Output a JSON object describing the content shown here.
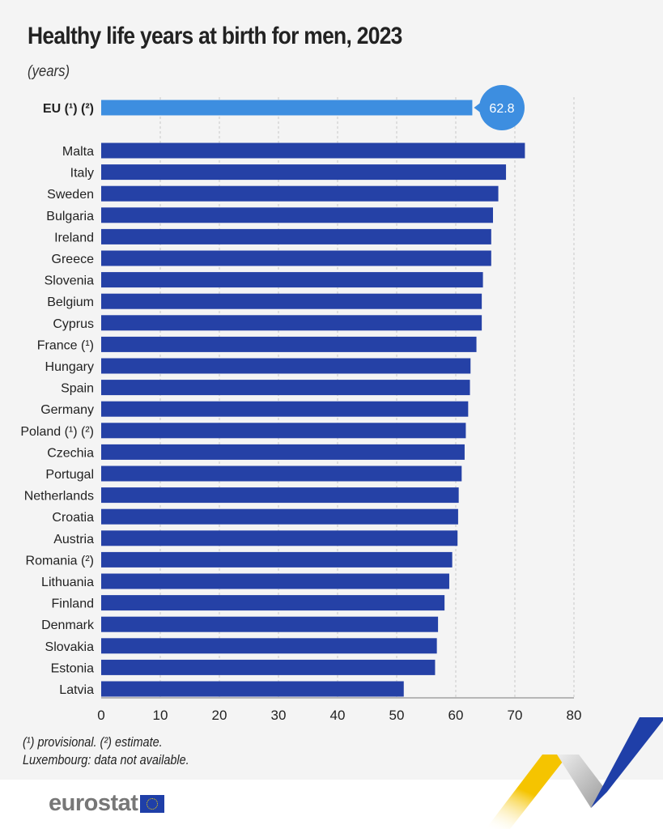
{
  "title": "Healthy life years at birth for men, 2023",
  "unit": "(years)",
  "notes": [
    "(¹) provisional. (²) estimate.",
    "Luxembourg: data not available."
  ],
  "logo": "eurostat",
  "colors": {
    "eu_bar": "#3d8ee0",
    "country_bar": "#2541a6",
    "callout": "#3d8ee0",
    "background": "#f4f4f4"
  },
  "chart_data": {
    "type": "bar",
    "orientation": "horizontal",
    "title": "Healthy life years at birth for men, 2023",
    "unit": "(years)",
    "xlim": [
      0,
      80
    ],
    "xticks": [
      "0",
      "10",
      "20",
      "30",
      "40",
      "50",
      "60",
      "70",
      "80"
    ],
    "grid": true,
    "highlight": {
      "label": "EU (¹) (²)",
      "value": 62.8,
      "value_label": "62.8"
    },
    "categories": [
      "Malta",
      "Italy",
      "Sweden",
      "Bulgaria",
      "Ireland",
      "Greece",
      "Slovenia",
      "Belgium",
      "Cyprus",
      "France (¹)",
      "Hungary",
      "Spain",
      "Germany",
      "Poland (¹) (²)",
      "Czechia",
      "Portugal",
      "Netherlands",
      "Croatia",
      "Austria",
      "Romania (²)",
      "Lithuania",
      "Finland",
      "Denmark",
      "Slovakia",
      "Estonia",
      "Latvia"
    ],
    "values": [
      71.7,
      68.5,
      67.2,
      66.3,
      66.0,
      66.0,
      64.6,
      64.4,
      64.4,
      63.5,
      62.5,
      62.4,
      62.1,
      61.7,
      61.5,
      61.0,
      60.5,
      60.4,
      60.3,
      59.4,
      58.9,
      58.1,
      57.0,
      56.8,
      56.5,
      51.2
    ]
  }
}
